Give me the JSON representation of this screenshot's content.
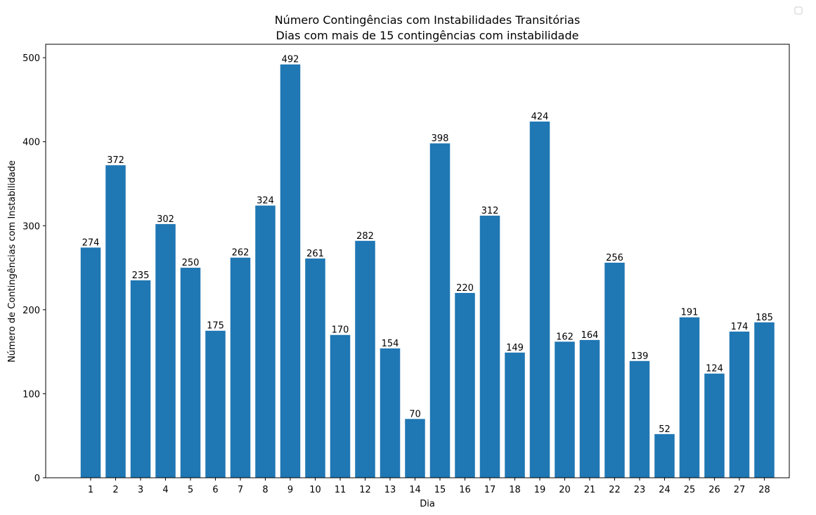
{
  "chart_data": {
    "type": "bar",
    "title": "Número Contingências com Instabilidades Transitórias",
    "subtitle": "Dias com mais de 15 contingências com instabilidade",
    "xlabel": "Dia",
    "ylabel": "Número de Contingências com Instabilidade",
    "categories": [
      "1",
      "2",
      "3",
      "4",
      "5",
      "6",
      "7",
      "8",
      "9",
      "10",
      "11",
      "12",
      "13",
      "14",
      "15",
      "16",
      "17",
      "18",
      "19",
      "20",
      "21",
      "22",
      "23",
      "24",
      "25",
      "26",
      "27",
      "28"
    ],
    "values": [
      274,
      372,
      235,
      302,
      250,
      175,
      262,
      324,
      492,
      261,
      170,
      282,
      154,
      70,
      398,
      220,
      312,
      149,
      424,
      162,
      164,
      256,
      139,
      52,
      191,
      124,
      174,
      185
    ],
    "ylim": [
      0,
      516
    ],
    "yticks": [
      0,
      100,
      200,
      300,
      400,
      500
    ],
    "bar_color": "#1f77b4",
    "grid": false,
    "legend": "top-right (empty)"
  }
}
